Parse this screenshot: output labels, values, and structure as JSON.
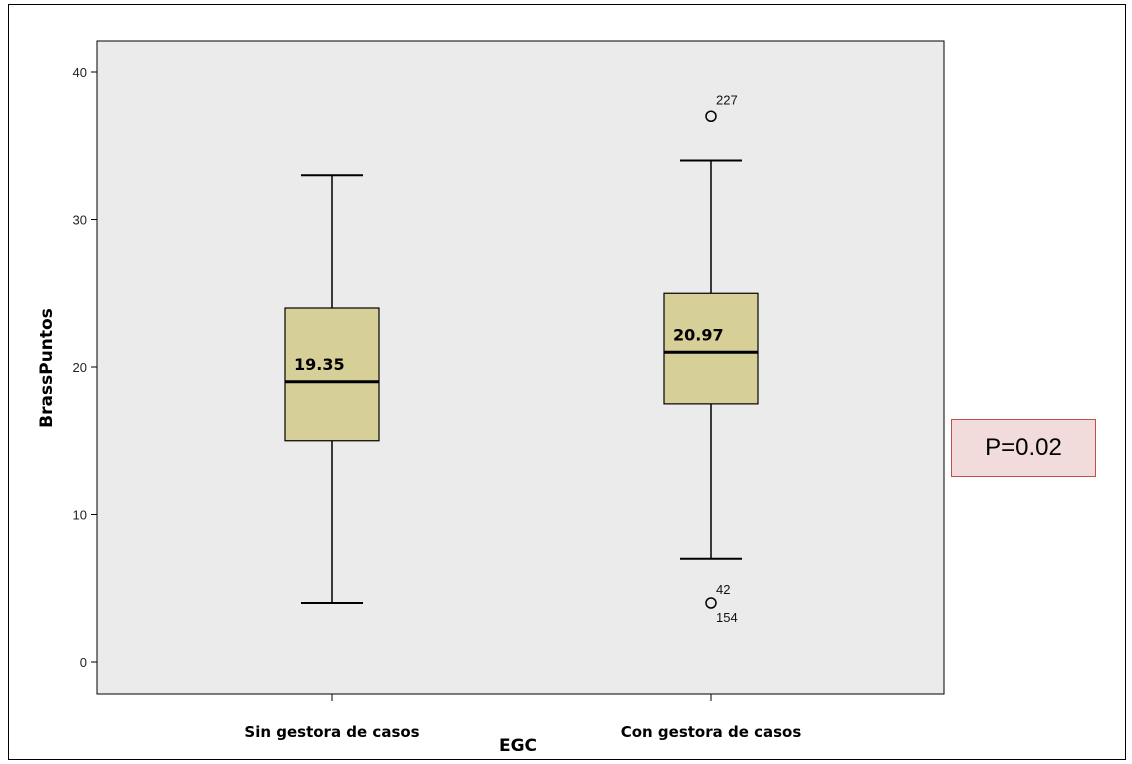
{
  "chart_data": {
    "type": "box",
    "xlabel": "EGC",
    "ylabel": "BrassPuntos",
    "ylim": [
      -2,
      43
    ],
    "yticks": [
      0,
      10,
      20,
      30,
      40
    ],
    "colors": {
      "box_fill": "#d7cf98",
      "plot_bg": "#ebebeb",
      "outlier": "#000000"
    },
    "groups": [
      {
        "category": "Sin gestora de casos",
        "whisker_low": 4,
        "q1": 15,
        "median": 19,
        "q3": 24,
        "whisker_high": 33,
        "median_label": "19.35",
        "outliers": []
      },
      {
        "category": "Con  gestora de casos",
        "whisker_low": 7,
        "q1": 17.5,
        "median": 21,
        "q3": 25,
        "whisker_high": 34,
        "median_label": "20.97",
        "outliers": [
          {
            "value": 37,
            "labels": [
              "227"
            ]
          },
          {
            "value": 4,
            "labels": [
              "42",
              "154"
            ]
          }
        ]
      }
    ],
    "annotation": "P=0.02"
  }
}
